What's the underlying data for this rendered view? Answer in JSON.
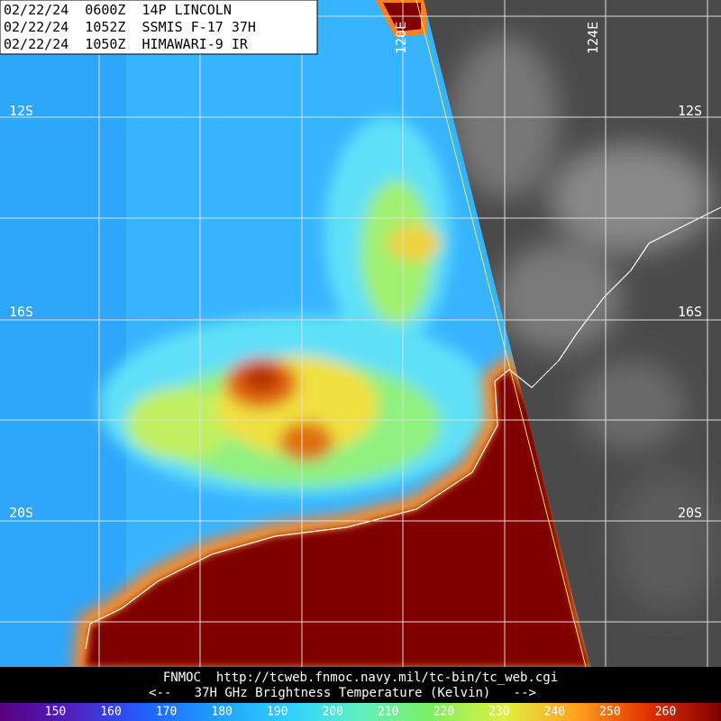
{
  "header": {
    "lines": [
      "02/22/24  0600Z  14P LINCOLN",
      "02/22/24  1052Z  SSMIS F-17 37H",
      "02/22/24  1050Z  HIMAWARI-9 IR"
    ]
  },
  "map": {
    "lat_labels": [
      "12S",
      "16S",
      "20S"
    ],
    "lon_labels": [
      "120E",
      "124E"
    ]
  },
  "footer": {
    "source": "FNMOC  http://tcweb.fnmoc.navy.mil/tc-bin/tc_web.cgi",
    "legend": "<--   37H GHz Brightness Temperature (Kelvin)   -->"
  },
  "colorbar": {
    "range": [
      140,
      270
    ],
    "ticks": [
      150,
      160,
      170,
      180,
      190,
      200,
      210,
      220,
      230,
      240,
      250,
      260
    ]
  }
}
